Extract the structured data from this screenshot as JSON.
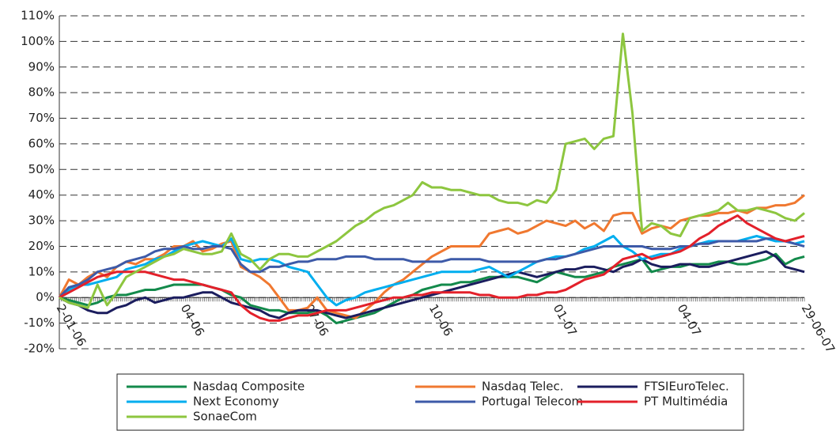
{
  "chart_data": {
    "type": "line",
    "categories": [
      "2-01-06",
      null,
      null,
      null,
      null,
      null,
      null,
      null,
      null,
      null,
      null,
      null,
      null,
      "04-06",
      null,
      null,
      null,
      null,
      null,
      null,
      null,
      null,
      null,
      null,
      null,
      null,
      "07-06",
      null,
      null,
      null,
      null,
      null,
      null,
      null,
      null,
      null,
      null,
      null,
      null,
      "10-06",
      null,
      null,
      null,
      null,
      null,
      null,
      null,
      null,
      null,
      null,
      null,
      null,
      "01-07",
      null,
      null,
      null,
      null,
      null,
      null,
      null,
      null,
      null,
      null,
      null,
      null,
      "04-07",
      null,
      null,
      null,
      null,
      null,
      null,
      null,
      null,
      null,
      null,
      null,
      null,
      "29-06-07"
    ],
    "series": [
      {
        "name": "Nasdaq Composite",
        "color": "#138a4b",
        "values": [
          0,
          -1,
          -2,
          -3,
          -2,
          0,
          1,
          1,
          2,
          3,
          3,
          4,
          5,
          5,
          5,
          5,
          4,
          3,
          1,
          0,
          -3,
          -4,
          -5,
          -5,
          -6,
          -6,
          -6,
          -5,
          -7,
          -10,
          -9,
          -8,
          -7,
          -6,
          -4,
          -2,
          0,
          1,
          3,
          4,
          5,
          5,
          6,
          6,
          7,
          8,
          8,
          8,
          8,
          7,
          6,
          8,
          10,
          9,
          8,
          8,
          9,
          10,
          12,
          13,
          14,
          15,
          10,
          11,
          12,
          12,
          13,
          13,
          13,
          14,
          14,
          13,
          13,
          14,
          15,
          17,
          13,
          15,
          16
        ]
      },
      {
        "name": "Nasdaq Telec.",
        "color": "#f07830",
        "values": [
          0,
          7,
          5,
          8,
          10,
          8,
          12,
          14,
          13,
          15,
          15,
          17,
          20,
          20,
          22,
          18,
          19,
          21,
          22,
          12,
          10,
          8,
          5,
          0,
          -5,
          -5,
          -4,
          0,
          -5,
          -6,
          -7,
          -8,
          -5,
          -2,
          2,
          5,
          7,
          10,
          13,
          16,
          18,
          20,
          20,
          20,
          20,
          25,
          26,
          27,
          25,
          26,
          28,
          30,
          29,
          28,
          30,
          27,
          29,
          26,
          32,
          33,
          33,
          25,
          27,
          28,
          27,
          30,
          31,
          32,
          32,
          33,
          33,
          34,
          33,
          35,
          35,
          36,
          36,
          37,
          40
        ]
      },
      {
        "name": "FTSIEuroTelec.",
        "color": "#1b1d5e",
        "values": [
          0,
          -2,
          -3,
          -5,
          -6,
          -6,
          -4,
          -3,
          -1,
          0,
          -2,
          -1,
          0,
          0,
          1,
          2,
          2,
          0,
          -2,
          -3,
          -4,
          -5,
          -7,
          -8,
          -6,
          -5,
          -5,
          -5,
          -6,
          -7,
          -8,
          -7,
          -6,
          -5,
          -4,
          -3,
          -2,
          -1,
          0,
          1,
          2,
          3,
          4,
          5,
          6,
          7,
          8,
          9,
          10,
          9,
          8,
          9,
          10,
          11,
          11,
          12,
          12,
          11,
          10,
          12,
          13,
          15,
          13,
          12,
          12,
          13,
          13,
          12,
          12,
          13,
          14,
          15,
          16,
          17,
          18,
          16,
          12,
          11,
          10
        ]
      },
      {
        "name": "Next Economy",
        "color": "#00aeef",
        "values": [
          0,
          3,
          5,
          5,
          6,
          7,
          8,
          11,
          12,
          13,
          15,
          16,
          18,
          20,
          21,
          22,
          21,
          20,
          23,
          15,
          14,
          15,
          15,
          14,
          12,
          11,
          10,
          5,
          0,
          -3,
          -1,
          0,
          2,
          3,
          4,
          5,
          6,
          7,
          8,
          9,
          10,
          10,
          10,
          10,
          11,
          12,
          10,
          8,
          10,
          12,
          14,
          15,
          16,
          16,
          17,
          19,
          20,
          22,
          24,
          20,
          18,
          15,
          16,
          17,
          17,
          19,
          20,
          21,
          22,
          22,
          22,
          22,
          23,
          24,
          23,
          22,
          22,
          21,
          22
        ]
      },
      {
        "name": "Portugal Telecom",
        "color": "#3d5aa8",
        "values": [
          0,
          4,
          5,
          7,
          10,
          11,
          12,
          14,
          15,
          16,
          18,
          19,
          19,
          20,
          19,
          19,
          20,
          20,
          19,
          13,
          10,
          10,
          12,
          12,
          13,
          14,
          14,
          15,
          15,
          15,
          16,
          16,
          16,
          15,
          15,
          15,
          15,
          14,
          14,
          14,
          14,
          15,
          15,
          15,
          15,
          14,
          14,
          14,
          14,
          14,
          14,
          15,
          15,
          16,
          17,
          18,
          19,
          20,
          20,
          20,
          20,
          20,
          19,
          19,
          19,
          20,
          20,
          21,
          21,
          22,
          22,
          22,
          22,
          22,
          23,
          23,
          22,
          21,
          20
        ]
      },
      {
        "name": "PT Multimédia",
        "color": "#e3202a",
        "values": [
          0,
          2,
          4,
          6,
          8,
          9,
          10,
          10,
          10,
          10,
          9,
          8,
          7,
          7,
          6,
          5,
          4,
          3,
          2,
          -3,
          -6,
          -8,
          -9,
          -9,
          -8,
          -7,
          -7,
          -6,
          -5,
          -5,
          -5,
          -4,
          -3,
          -2,
          -1,
          0,
          0,
          1,
          1,
          2,
          2,
          2,
          2,
          2,
          1,
          1,
          0,
          0,
          0,
          1,
          1,
          2,
          2,
          3,
          5,
          7,
          8,
          9,
          12,
          15,
          16,
          17,
          15,
          16,
          17,
          18,
          20,
          23,
          25,
          28,
          30,
          32,
          29,
          27,
          25,
          23,
          22,
          23,
          24
        ]
      },
      {
        "name": "SonaeCom",
        "color": "#8dc63f",
        "values": [
          0,
          -2,
          -3,
          -4,
          5,
          -3,
          2,
          8,
          10,
          12,
          14,
          16,
          17,
          19,
          18,
          17,
          17,
          18,
          25,
          17,
          15,
          11,
          15,
          17,
          17,
          16,
          16,
          18,
          20,
          22,
          25,
          28,
          30,
          33,
          35,
          36,
          38,
          40,
          45,
          43,
          43,
          42,
          42,
          41,
          40,
          40,
          38,
          37,
          37,
          36,
          38,
          37,
          42,
          60,
          61,
          62,
          58,
          62,
          63,
          103,
          72,
          26,
          29,
          28,
          25,
          24,
          31,
          32,
          33,
          34,
          37,
          34,
          34,
          35,
          34,
          33,
          31,
          30,
          33
        ]
      }
    ],
    "ylim": [
      -20,
      110
    ],
    "yticks": [
      {
        "value": -20,
        "label": "-20%"
      },
      {
        "value": -10,
        "label": "-10%"
      },
      {
        "value": 0,
        "label": "0%"
      },
      {
        "value": 10,
        "label": "10%"
      },
      {
        "value": 20,
        "label": "20%"
      },
      {
        "value": 30,
        "label": "30%"
      },
      {
        "value": 40,
        "label": "40%"
      },
      {
        "value": 50,
        "label": "50%"
      },
      {
        "value": 60,
        "label": "60%"
      },
      {
        "value": 70,
        "label": "70%"
      },
      {
        "value": 80,
        "label": "80%"
      },
      {
        "value": 90,
        "label": "90%"
      },
      {
        "value": 100,
        "label": "100%"
      },
      {
        "value": 110,
        "label": "110%"
      }
    ],
    "grid": true
  }
}
